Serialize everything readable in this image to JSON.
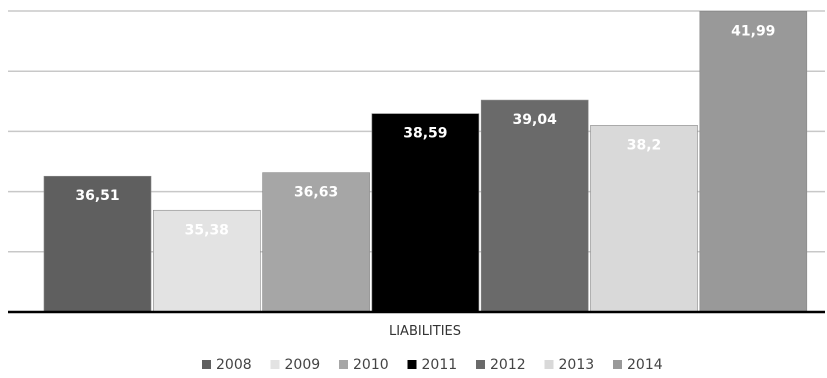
{
  "chart_data": {
    "type": "bar",
    "categories": [
      "LIABILITIES"
    ],
    "series": [
      {
        "name": "2008",
        "values": [
          36.51
        ],
        "label": "36,51",
        "color": "#5f5f5f",
        "label_color": "#ffffff"
      },
      {
        "name": "2009",
        "values": [
          35.38
        ],
        "label": "35,38",
        "color": "#e3e3e3",
        "label_color": "#ffffff"
      },
      {
        "name": "2010",
        "values": [
          36.63
        ],
        "label": "36,63",
        "color": "#a6a6a6",
        "label_color": "#ffffff"
      },
      {
        "name": "2011",
        "values": [
          38.59
        ],
        "label": "38,59",
        "color": "#000000",
        "label_color": "#ffffff"
      },
      {
        "name": "2012",
        "values": [
          39.04
        ],
        "label": "39,04",
        "color": "#6a6a6a",
        "label_color": "#ffffff"
      },
      {
        "name": "2013",
        "values": [
          38.2
        ],
        "label": "38,2",
        "color": "#d9d9d9",
        "label_color": "#ffffff"
      },
      {
        "name": "2014",
        "values": [
          41.99
        ],
        "label": "41,99",
        "color": "#999999",
        "label_color": "#ffffff"
      }
    ],
    "ylim": [
      32,
      42
    ],
    "grid": true,
    "legend": "bottom",
    "title": "",
    "xlabel": "",
    "ylabel": ""
  }
}
